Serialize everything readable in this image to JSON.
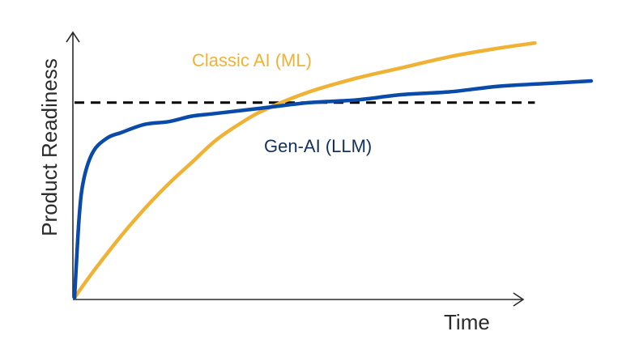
{
  "chart_data": {
    "type": "line",
    "xlabel": "Time",
    "ylabel": "Product Readiness",
    "xlim": [
      0,
      100
    ],
    "ylim": [
      0,
      100
    ],
    "grid": false,
    "legend": "inline-labels",
    "series": [
      {
        "name": "Classic AI (ML)",
        "color": "#f0b235",
        "x": [
          0,
          2,
          5,
          10,
          15,
          20,
          25,
          30,
          35,
          40,
          50,
          60,
          70,
          80,
          90,
          98
        ],
        "y": [
          0,
          5,
          12,
          23,
          33,
          42,
          50,
          58,
          64,
          69,
          76,
          81,
          85,
          89,
          92,
          94
        ]
      },
      {
        "name": "Gen-AI (LLM)",
        "color": "#0a4aa8",
        "x": [
          0,
          1,
          2,
          4,
          7,
          10,
          15,
          20,
          25,
          30,
          40,
          50,
          60,
          70,
          80,
          90,
          100,
          110
        ],
        "y": [
          0,
          30,
          44,
          54,
          59,
          61,
          64,
          65,
          67,
          68,
          70,
          72,
          73,
          75,
          76,
          78,
          79,
          80
        ]
      }
    ],
    "reference_line": {
      "style": "dashed",
      "color": "#000000",
      "y": 72,
      "x": [
        0,
        98
      ]
    }
  }
}
